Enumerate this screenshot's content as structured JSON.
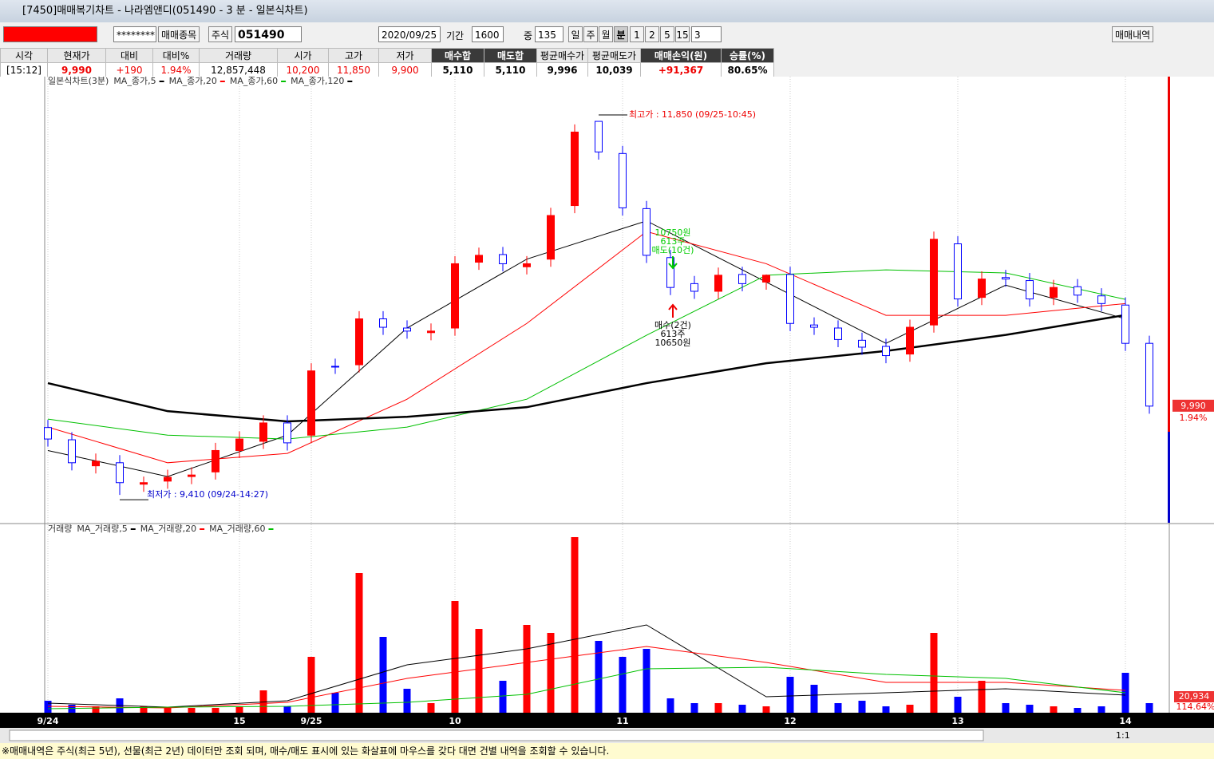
{
  "window": {
    "title": "[7450]매매복기차트 - 나라엠앤디(051490 - 3 분 - 일본식차트)"
  },
  "toolbar": {
    "password": "********",
    "pick": "매매종목",
    "market": "주식",
    "code": "051490",
    "date": "2020/09/25",
    "period_label": "기간",
    "period": "1600",
    "mid_label": "중",
    "mid": "135",
    "units": [
      "일",
      "주",
      "월",
      "분",
      "1",
      "2",
      "5",
      "15"
    ],
    "unit": "3",
    "history": "매매내역"
  },
  "info": {
    "headers": [
      "시각",
      "현재가",
      "대비",
      "대비%",
      "거래량",
      "시가",
      "고가",
      "저가",
      "매수합",
      "매도합",
      "평균매수가",
      "평균매도가",
      "매매손익(원)",
      "승률(%)"
    ],
    "values": [
      "[15:12]",
      "9,990",
      "+190",
      "1.94%",
      "12,857,448",
      "10,200",
      "11,850",
      "9,900",
      "5,110",
      "5,110",
      "9,996",
      "10,039",
      "+91,367",
      "80.65%"
    ]
  },
  "chart_data": [
    {
      "type": "candlestick",
      "legend_title": "일본식차트(3분)",
      "categories": [
        "9/24",
        null,
        null,
        null,
        null,
        null,
        null,
        null,
        "15",
        null,
        null,
        "9/25",
        null,
        null,
        null,
        null,
        null,
        "10",
        null,
        null,
        null,
        null,
        null,
        null,
        "11",
        null,
        null,
        null,
        null,
        null,
        null,
        "12",
        null,
        null,
        null,
        null,
        null,
        null,
        "13",
        null,
        null,
        null,
        null,
        null,
        null,
        "14",
        null
      ],
      "open": [
        9850,
        9770,
        9600,
        9620,
        9480,
        9500,
        9530,
        9560,
        9700,
        9760,
        9880,
        9800,
        10250,
        10260,
        10560,
        10500,
        10470,
        10500,
        10930,
        10980,
        10900,
        10950,
        11300,
        11850,
        11640,
        11280,
        10960,
        10790,
        10740,
        10850,
        10800,
        10850,
        10520,
        10500,
        10420,
        10380,
        10330,
        10520,
        11050,
        10700,
        10830,
        10810,
        10700,
        10770,
        10710,
        10650,
        10400
      ],
      "high": [
        9900,
        9820,
        9680,
        9670,
        9530,
        9575,
        9590,
        9750,
        9825,
        9930,
        9930,
        10270,
        10300,
        10610,
        10610,
        10550,
        10530,
        10970,
        11025,
        11030,
        10970,
        11285,
        11830,
        11850,
        11690,
        11330,
        11010,
        10840,
        10895,
        10900,
        10850,
        10900,
        10570,
        10550,
        10470,
        10430,
        10555,
        11130,
        11100,
        10870,
        10880,
        10860,
        10815,
        10820,
        10760,
        10700,
        10450
      ],
      "low": [
        9725,
        9570,
        9550,
        9410,
        9430,
        9450,
        9480,
        9510,
        9650,
        9710,
        9700,
        9750,
        10200,
        10210,
        10455,
        10430,
        10420,
        10450,
        10880,
        10870,
        10850,
        10900,
        11250,
        11600,
        11235,
        10925,
        10715,
        10690,
        10690,
        10740,
        10750,
        10480,
        10455,
        10375,
        10325,
        10270,
        10280,
        10470,
        10640,
        10650,
        10770,
        10640,
        10650,
        10665,
        10610,
        10350,
        9940
      ],
      "close": [
        9775,
        9620,
        9630,
        9490,
        9490,
        9525,
        9540,
        9700,
        9775,
        9880,
        9750,
        10220,
        10245,
        10560,
        10505,
        10480,
        10480,
        10920,
        10975,
        10920,
        10920,
        11235,
        11780,
        11650,
        11285,
        10975,
        10765,
        10740,
        10845,
        10790,
        10845,
        10530,
        10505,
        10425,
        10375,
        10320,
        10505,
        11080,
        10690,
        10820,
        10820,
        10690,
        10765,
        10715,
        10660,
        10400,
        9990
      ],
      "up_color": "#ff0000",
      "down_color": "#0000ff",
      "ylim": [
        9228,
        12137
      ],
      "series": [
        {
          "name": "MA_종가,5",
          "color": "#000000",
          "x": [
            0,
            5,
            10,
            15,
            20,
            25,
            30,
            35,
            40,
            45
          ],
          "values": [
            9700,
            9530,
            9800,
            10500,
            10950,
            11200,
            10800,
            10400,
            10780,
            10560
          ]
        },
        {
          "name": "MA_종가,20",
          "color": "#ff0000",
          "x": [
            0,
            5,
            10,
            15,
            20,
            25,
            30,
            35,
            40,
            45
          ],
          "values": [
            9853,
            9620,
            9681,
            10035,
            10530,
            11130,
            10920,
            10583,
            10583,
            10660
          ]
        },
        {
          "name": "MA_종가,60",
          "color": "#00c000",
          "x": [
            0,
            5,
            10,
            15,
            20,
            25,
            30,
            35,
            40,
            45
          ],
          "values": [
            9905,
            9800,
            9775,
            9853,
            10035,
            10453,
            10845,
            10880,
            10860,
            10687
          ]
        },
        {
          "name": "MA_종가,120",
          "color": "#000000",
          "x": [
            0,
            5,
            10,
            15,
            20,
            25,
            30,
            35,
            40,
            45
          ],
          "values": [
            10140,
            9957,
            9890,
            9920,
            9983,
            10140,
            10270,
            10350,
            10455,
            10585
          ]
        }
      ],
      "annotations": {
        "high": "최고가 : 11,850 (09/25-10:45)",
        "low": "최저가 : 9,410 (09/24-14:27)",
        "sell": [
          "10750원",
          "613주",
          "매도(10건)"
        ],
        "buy": [
          "매수(2건)",
          "613주",
          "10650원"
        ]
      },
      "last_price_label": "9,990",
      "last_change_label": "1.94%"
    },
    {
      "type": "bar",
      "legend_title": "거래량",
      "ylim": [
        0,
        225000
      ],
      "values": [
        15000,
        10000,
        8000,
        18000,
        8000,
        6000,
        6000,
        6000,
        8000,
        28000,
        8000,
        70000,
        25000,
        175000,
        95000,
        30000,
        12000,
        140000,
        105000,
        40000,
        110000,
        100000,
        220000,
        90000,
        70000,
        80000,
        18000,
        12000,
        12000,
        10000,
        8000,
        45000,
        35000,
        12000,
        15000,
        8000,
        10000,
        100000,
        20000,
        40000,
        12000,
        10000,
        8000,
        6000,
        8000,
        50000,
        12000
      ],
      "series": [
        {
          "name": "MA_거래량,5",
          "color": "#000000",
          "x": [
            0,
            5,
            10,
            15,
            20,
            25,
            30,
            35,
            40,
            45
          ],
          "values": [
            12000,
            7000,
            15000,
            60000,
            80000,
            110000,
            20000,
            25000,
            30000,
            22000
          ]
        },
        {
          "name": "MA_거래량,20",
          "color": "#ff0000",
          "x": [
            0,
            5,
            10,
            15,
            20,
            25,
            30,
            35,
            40,
            45
          ],
          "values": [
            8000,
            6000,
            13000,
            43000,
            63000,
            83000,
            63000,
            38000,
            38000,
            28000
          ]
        },
        {
          "name": "MA_거래량,60",
          "color": "#00c000",
          "x": [
            0,
            5,
            10,
            15,
            20,
            25,
            30,
            35,
            40,
            45
          ],
          "values": [
            5000,
            7000,
            8000,
            13000,
            23000,
            55000,
            57000,
            48000,
            43000,
            25000
          ]
        }
      ],
      "last_volume_label": "20,934",
      "last_ratio_label": "114.64%"
    }
  ],
  "status": {
    "text": "※매매내역은 주식(최근 5년), 선물(최근 2년) 데이터만 조회 되며, 매수/매도 표시에 있는 화살표에 마우스를 갖다 대면 건별 내역을 조회할 수 있습니다.",
    "zoom": "1:1"
  }
}
